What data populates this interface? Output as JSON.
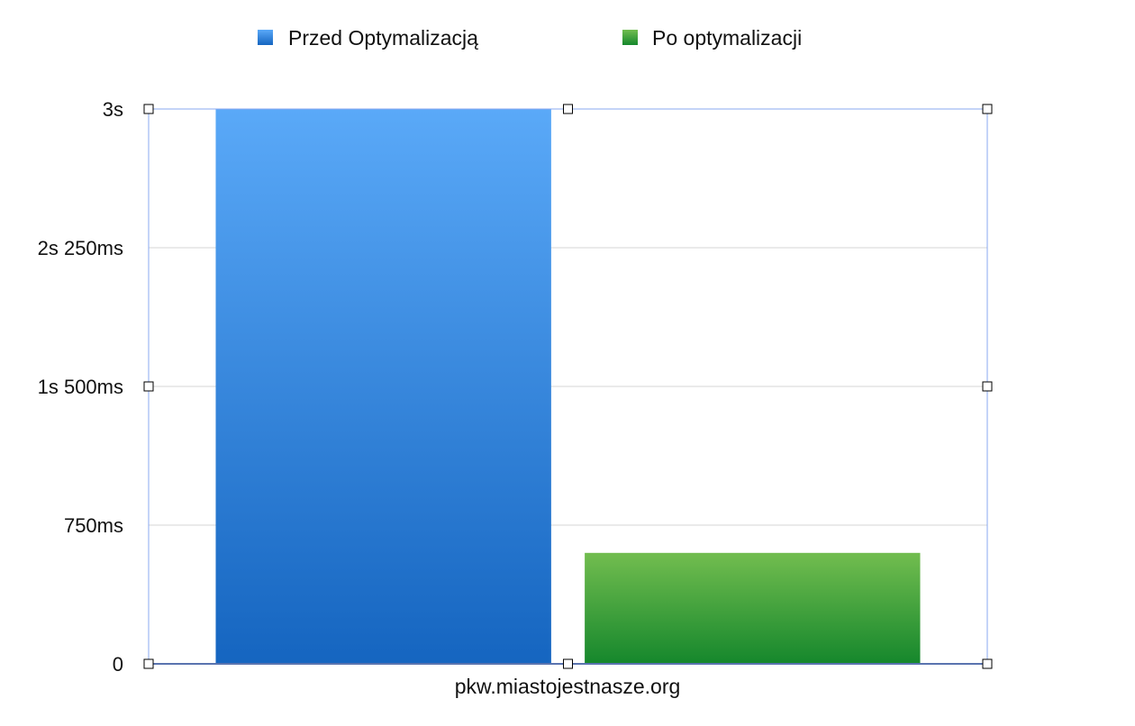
{
  "chart_data": {
    "type": "bar",
    "categories": [
      "pkw.miastojestnasze.org"
    ],
    "series": [
      {
        "name": "Przed Optymalizacją",
        "values": [
          3000
        ]
      },
      {
        "name": "Po optymalizacji",
        "values": [
          600
        ]
      }
    ],
    "ylim": [
      0,
      3000
    ],
    "yticks": [
      {
        "value": 0,
        "label": "0"
      },
      {
        "value": 750,
        "label": "750ms"
      },
      {
        "value": 1500,
        "label": "1s 500ms"
      },
      {
        "value": 2250,
        "label": "2s 250ms"
      },
      {
        "value": 3000,
        "label": "3s"
      }
    ],
    "grid": true,
    "legend": "top",
    "colors": {
      "series_0_top": "#5aa9f8",
      "series_0_bottom": "#1565c0",
      "series_1_top": "#72bd4f",
      "series_1_bottom": "#15872c",
      "selection": "#8aa8f0",
      "axis": "#2a3f6e",
      "grid": "#d6d6d6"
    }
  }
}
